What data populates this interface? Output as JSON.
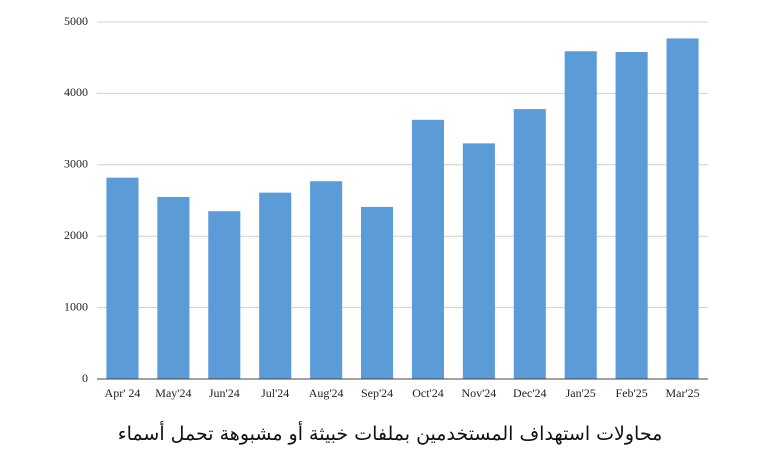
{
  "chart_data": {
    "type": "bar",
    "caption": "محاولات استهداف المستخدمين بملفات خبيثة أو مشبوهة تحمل أسماء",
    "categories": [
      "Apr' 24",
      "May'24",
      "Jun'24",
      "Jul'24",
      "Aug'24",
      "Sep'24",
      "Oct'24",
      "Nov'24",
      "Dec'24",
      "Jan'25",
      "Feb'25",
      "Mar'25"
    ],
    "values": [
      2820,
      2550,
      2350,
      2610,
      2770,
      2410,
      3630,
      3300,
      3780,
      4590,
      4580,
      4770
    ],
    "color": "#5b9bd7",
    "ylim": [
      0,
      5000
    ],
    "yticks": [
      0,
      1000,
      2000,
      3000,
      4000,
      5000
    ],
    "grid": true
  }
}
